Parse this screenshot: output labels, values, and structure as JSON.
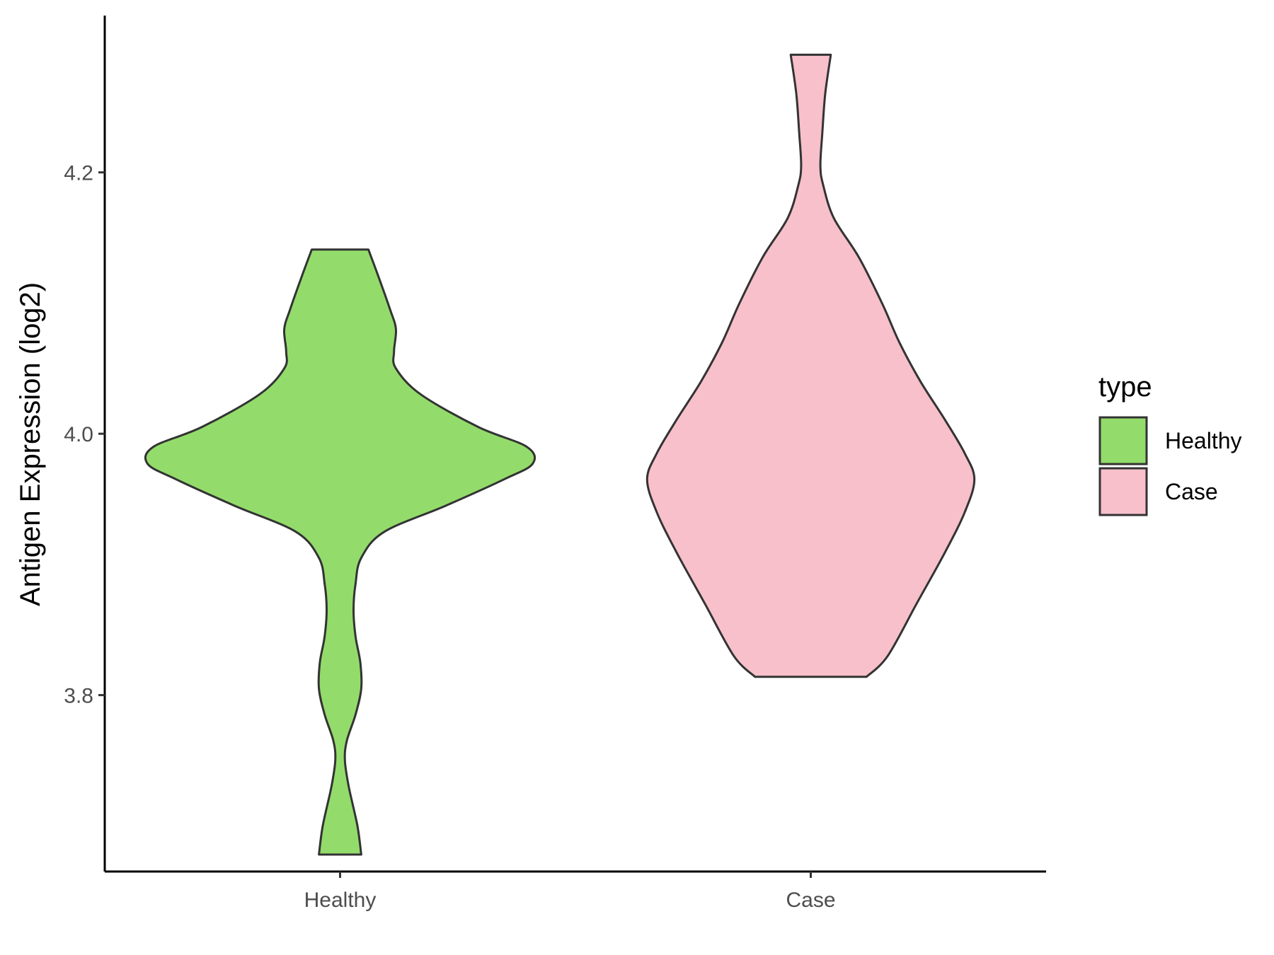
{
  "chart_data": {
    "type": "violin",
    "title": "",
    "xlabel": "",
    "ylabel": "Antigen Expression (log2)",
    "categories": [
      "Healthy",
      "Case"
    ],
    "ylim": [
      3.665,
      4.32
    ],
    "yticks": [
      3.8,
      4.0,
      4.2
    ],
    "ytick_labels": [
      "3.8",
      "4.0",
      "4.2"
    ],
    "grid": false,
    "legend": {
      "title": "type",
      "position": "right",
      "entries": [
        {
          "label": "Healthy",
          "color": "#93DC6B"
        },
        {
          "label": "Case",
          "color": "#F7C0CB"
        }
      ]
    },
    "series": [
      {
        "name": "Healthy",
        "color": "#93DC6B",
        "min": 3.678,
        "max": 4.141,
        "density": [
          [
            3.678,
            0.11
          ],
          [
            3.7,
            0.09
          ],
          [
            3.73,
            0.045
          ],
          [
            3.75,
            0.025
          ],
          [
            3.765,
            0.035
          ],
          [
            3.785,
            0.08
          ],
          [
            3.805,
            0.11
          ],
          [
            3.825,
            0.105
          ],
          [
            3.845,
            0.08
          ],
          [
            3.865,
            0.07
          ],
          [
            3.885,
            0.08
          ],
          [
            3.905,
            0.11
          ],
          [
            3.925,
            0.23
          ],
          [
            3.945,
            0.55
          ],
          [
            3.965,
            0.85
          ],
          [
            3.977,
            1.0
          ],
          [
            3.99,
            0.97
          ],
          [
            4.005,
            0.72
          ],
          [
            4.03,
            0.42
          ],
          [
            4.05,
            0.29
          ],
          [
            4.063,
            0.28
          ],
          [
            4.08,
            0.29
          ],
          [
            4.095,
            0.26
          ],
          [
            4.12,
            0.2
          ],
          [
            4.141,
            0.147
          ]
        ]
      },
      {
        "name": "Case",
        "color": "#F7C0CB",
        "min": 3.814,
        "max": 4.29,
        "density": [
          [
            3.814,
            0.29
          ],
          [
            3.83,
            0.4
          ],
          [
            3.87,
            0.55
          ],
          [
            3.91,
            0.7
          ],
          [
            3.94,
            0.8
          ],
          [
            3.965,
            0.85
          ],
          [
            3.985,
            0.8
          ],
          [
            4.01,
            0.7
          ],
          [
            4.04,
            0.57
          ],
          [
            4.07,
            0.46
          ],
          [
            4.1,
            0.37
          ],
          [
            4.135,
            0.25
          ],
          [
            4.165,
            0.12
          ],
          [
            4.19,
            0.065
          ],
          [
            4.205,
            0.05
          ],
          [
            4.23,
            0.06
          ],
          [
            4.26,
            0.075
          ],
          [
            4.29,
            0.104
          ]
        ]
      }
    ]
  }
}
